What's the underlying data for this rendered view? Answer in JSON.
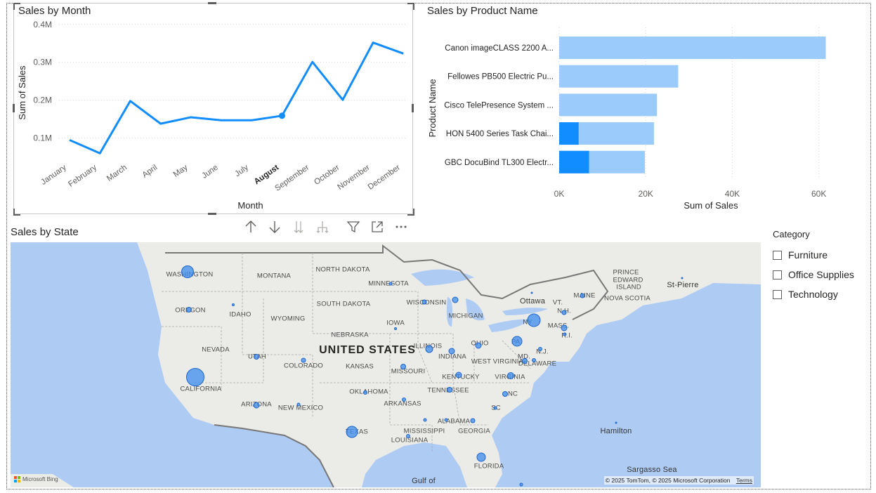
{
  "line_chart": {
    "title": "Sales by Month",
    "chart_data": {
      "type": "line",
      "title": "Sales by Month",
      "xlabel": "Month",
      "ylabel": "Sum of Sales",
      "categories": [
        "January",
        "February",
        "March",
        "April",
        "May",
        "June",
        "July",
        "August",
        "September",
        "October",
        "November",
        "December"
      ],
      "values": [
        95000,
        60000,
        198000,
        138000,
        155000,
        147000,
        147000,
        159000,
        301000,
        201000,
        352000,
        323000
      ],
      "yticks": [
        "0.1M",
        "0.2M",
        "0.3M",
        "0.4M"
      ],
      "ytick_values": [
        100000,
        200000,
        300000,
        400000
      ],
      "ylim": [
        40000,
        420000
      ],
      "highlight_category": "August",
      "color": "#118dff",
      "grid": true
    }
  },
  "bar_chart": {
    "title": "Sales by Product Name",
    "chart_data": {
      "type": "bar",
      "orientation": "horizontal",
      "title": "Sales by Product Name",
      "xlabel": "Sum of Sales",
      "ylabel": "Product Name",
      "categories": [
        "Canon imageCLASS 2200 A...",
        "Fellowes PB500 Electric Pu...",
        "Cisco TelePresence System ...",
        "HON 5400 Series Task Chai...",
        "GBC DocuBind TL300 Electr..."
      ],
      "values": [
        61600,
        27500,
        22600,
        21900,
        19800
      ],
      "highlighted_values": [
        0,
        0,
        0,
        4500,
        6900
      ],
      "xticks": [
        "0K",
        "20K",
        "40K",
        "60K"
      ],
      "xtick_values": [
        0,
        20000,
        40000,
        60000
      ],
      "xlim": [
        0,
        62000
      ],
      "color": "#9bcbfb",
      "highlight_color": "#118dff",
      "grid": true
    }
  },
  "map": {
    "title": "Sales by State",
    "labels": [
      {
        "text": "UNITED STATES",
        "kind": "big"
      },
      {
        "text": "Ottawa",
        "kind": "city"
      },
      {
        "text": "Hamilton",
        "kind": "city"
      },
      {
        "text": "St-Pierre",
        "kind": "city"
      },
      {
        "text": "Sargasso Sea",
        "kind": "city"
      },
      {
        "text": "Gulf of",
        "kind": "city"
      },
      {
        "text": "WASHINGTON",
        "kind": "state"
      },
      {
        "text": "MONTANA",
        "kind": "state"
      },
      {
        "text": "NORTH DAKOTA",
        "kind": "state"
      },
      {
        "text": "MINNESOTA",
        "kind": "state"
      },
      {
        "text": "OREGON",
        "kind": "state"
      },
      {
        "text": "IDAHO",
        "kind": "state"
      },
      {
        "text": "WYOMING",
        "kind": "state"
      },
      {
        "text": "SOUTH DAKOTA",
        "kind": "state"
      },
      {
        "text": "WISCONSIN",
        "kind": "state"
      },
      {
        "text": "MICHIGAN",
        "kind": "state"
      },
      {
        "text": "IOWA",
        "kind": "state"
      },
      {
        "text": "NEBRASKA",
        "kind": "state"
      },
      {
        "text": "NEVADA",
        "kind": "state"
      },
      {
        "text": "UTAH",
        "kind": "state"
      },
      {
        "text": "COLORADO",
        "kind": "state"
      },
      {
        "text": "KANSAS",
        "kind": "state"
      },
      {
        "text": "MISSOURI",
        "kind": "state"
      },
      {
        "text": "ILLINOIS",
        "kind": "state"
      },
      {
        "text": "INDIANA",
        "kind": "state"
      },
      {
        "text": "OHIO",
        "kind": "state"
      },
      {
        "text": "PA",
        "kind": "state"
      },
      {
        "text": "NY",
        "kind": "state"
      },
      {
        "text": "MAINE",
        "kind": "state"
      },
      {
        "text": "VT.",
        "kind": "state"
      },
      {
        "text": "N.H.",
        "kind": "state"
      },
      {
        "text": "MASS.",
        "kind": "state"
      },
      {
        "text": "R.I.",
        "kind": "state"
      },
      {
        "text": "N.J.",
        "kind": "state"
      },
      {
        "text": "MD.",
        "kind": "state"
      },
      {
        "text": "DELAWARE",
        "kind": "state"
      },
      {
        "text": "WEST VIRGINIA",
        "kind": "state"
      },
      {
        "text": "VIRGINIA",
        "kind": "state"
      },
      {
        "text": "KENTUCKY",
        "kind": "state"
      },
      {
        "text": "CALIFORNIA",
        "kind": "state"
      },
      {
        "text": "ARIZONA",
        "kind": "state"
      },
      {
        "text": "NEW MEXICO",
        "kind": "state"
      },
      {
        "text": "OKLAHOMA",
        "kind": "state"
      },
      {
        "text": "TENNESSEE",
        "kind": "state"
      },
      {
        "text": "NC",
        "kind": "state"
      },
      {
        "text": "SC",
        "kind": "state"
      },
      {
        "text": "ARKANSAS",
        "kind": "state"
      },
      {
        "text": "TEXAS",
        "kind": "state"
      },
      {
        "text": "MISSISSIPPI",
        "kind": "state"
      },
      {
        "text": "ALABAMA",
        "kind": "state"
      },
      {
        "text": "GEORGIA",
        "kind": "state"
      },
      {
        "text": "LOUISIANA",
        "kind": "state"
      },
      {
        "text": "FLORIDA",
        "kind": "state"
      },
      {
        "text": "PRINCE",
        "kind": "state"
      },
      {
        "text": "EDWARD",
        "kind": "state"
      },
      {
        "text": "ISLAND",
        "kind": "state"
      },
      {
        "text": "NOVA SCOTIA",
        "kind": "state"
      }
    ],
    "copyright": "© 2025 TomTom, © 2025 Microsoft Corporation",
    "terms_link": "Terms",
    "provider": "Microsoft Bing"
  },
  "toolbar": {
    "icons": [
      "arrow-up-icon",
      "arrow-down-icon",
      "double-arrow-down-icon",
      "expand-hierarchy-icon",
      "filter-icon",
      "focus-mode-icon",
      "more-options-icon"
    ]
  },
  "slicer": {
    "title": "Category",
    "items": [
      "Furniture",
      "Office Supplies",
      "Technology"
    ]
  },
  "colors": {
    "accent": "#118dff",
    "bar_light": "#9bcbfb",
    "map_water": "#aecbf3",
    "map_land": "#ebebe8"
  }
}
